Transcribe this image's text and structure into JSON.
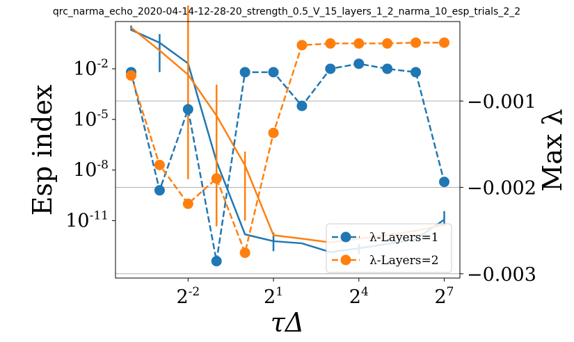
{
  "chart_data": {
    "type": "line",
    "title": "qrc_narma_echo_2020-04-14-12-28-20_strength_0.5_V_15_layers_1_2_narma_10_esp_trials_2_2",
    "xlabel": "τΔ",
    "ylabel_left": "Esp index",
    "ylabel_right": "Max λ",
    "x_scale": "log2",
    "x": [
      0.0625,
      0.125,
      0.25,
      0.5,
      1,
      2,
      4,
      8,
      16,
      32,
      64,
      128
    ],
    "x_ticks": [
      {
        "base": "2",
        "exp": "-2",
        "value": 0.25
      },
      {
        "base": "2",
        "exp": "1",
        "value": 2
      },
      {
        "base": "2",
        "exp": "4",
        "value": 16
      },
      {
        "base": "2",
        "exp": "7",
        "value": 128
      }
    ],
    "left_axis": {
      "scale": "log10",
      "ylim_exp": [
        -14.4,
        0.8
      ],
      "ticks": [
        {
          "base": "10",
          "exp": "-2",
          "value": -2
        },
        {
          "base": "10",
          "exp": "-5",
          "value": -5
        },
        {
          "base": "10",
          "exp": "-8",
          "value": -8
        },
        {
          "base": "10",
          "exp": "-11",
          "value": -11
        }
      ]
    },
    "right_axis": {
      "scale": "linear",
      "ylim": [
        -0.00305,
        -8e-05
      ],
      "ticks": [
        {
          "label": "−0.001",
          "value": -0.001
        },
        {
          "label": "−0.002",
          "value": -0.002
        },
        {
          "label": "−0.003",
          "value": -0.003
        }
      ],
      "grid": true
    },
    "esp_series": [
      {
        "name": "λ-Layers=1",
        "color": "#1f77b4",
        "axis": "left",
        "style": "dashed-marker",
        "log10_values": [
          -2.2,
          -9.2,
          -4.4,
          -13.4,
          -2.2,
          -2.2,
          -4.2,
          -2.0,
          -1.7,
          -2.0,
          -2.2,
          -8.7
        ]
      },
      {
        "name": "λ-Layers=2",
        "color": "#ff7f0e",
        "axis": "left",
        "style": "dashed-marker",
        "log10_values": [
          -2.4,
          -7.7,
          -10.0,
          -8.5,
          -12.9,
          -5.8,
          -0.6,
          -0.5,
          -0.5,
          -0.5,
          -0.45,
          -0.45
        ]
      }
    ],
    "max_lambda_series": [
      {
        "color": "#1f77b4",
        "axis": "right",
        "style": "solid-errorbar",
        "values": [
          -0.000176,
          -0.000325,
          -0.000565,
          -0.0017,
          -0.002544,
          -0.002623,
          -0.002648,
          -0.00275,
          -0.002706,
          -0.002655,
          -0.002599,
          -0.002374
        ],
        "err_lower": [
          1e-05,
          0.00034,
          0.0,
          0.0,
          0.0,
          0.000116,
          0.0,
          0.0,
          6.6e-05,
          0.0,
          0.0,
          7.6e-05
        ],
        "err_upper": [
          5e-05,
          0.0001,
          0.0,
          0.0,
          0.0,
          0.0001,
          0.0,
          0.0,
          5e-05,
          0.0,
          0.0,
          9.9e-05
        ]
      },
      {
        "color": "#ff7f0e",
        "axis": "right",
        "style": "solid-errorbar",
        "values": [
          -0.00015,
          -0.000415,
          -0.000695,
          -0.00117,
          -0.001745,
          -0.002554,
          -0.002594,
          -0.002637,
          -0.002594,
          -0.002554,
          -0.002503,
          -0.002433
        ],
        "err_lower": [
          0.0,
          0.0,
          0.00121,
          0.00128,
          0.00064,
          0.0,
          0.0,
          0.0,
          0.0,
          0.0,
          0.0,
          0.0
        ],
        "err_upper": [
          0.0,
          0.0,
          0.0008,
          0.00036,
          0.00016,
          0.0,
          0.0,
          0.0,
          0.0,
          0.0,
          0.0,
          0.0
        ]
      }
    ],
    "legend": {
      "placement": "lower-right",
      "entries": [
        "λ-Layers=1",
        "λ-Layers=2"
      ]
    }
  }
}
